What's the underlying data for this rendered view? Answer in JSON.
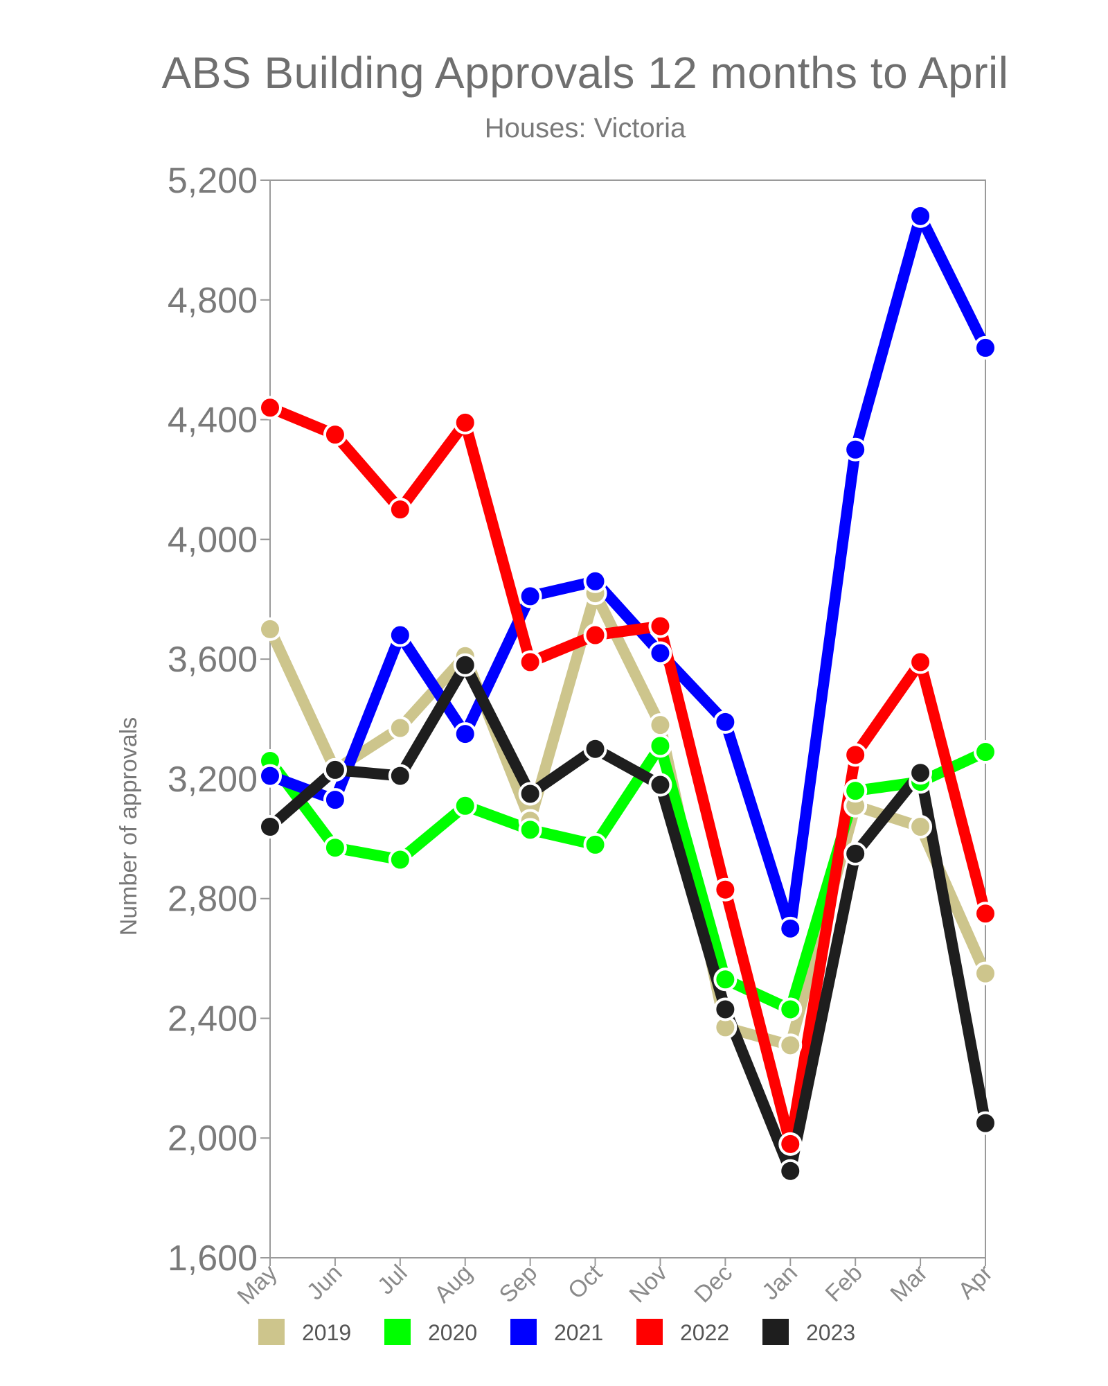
{
  "title": "ABS Building Approvals 12 months to April",
  "subtitle": "Houses: Victoria",
  "chart_data": {
    "type": "line",
    "title": "ABS Building Approvals 12 months to April",
    "subtitle": "Houses: Victoria",
    "xlabel": "",
    "ylabel": "Number of approvals",
    "ylim": [
      1600,
      5200
    ],
    "yticks": [
      1600,
      2000,
      2400,
      2800,
      3200,
      3600,
      4000,
      4400,
      4800,
      5200
    ],
    "ytick_labels": [
      "1,600",
      "2,000",
      "2,400",
      "2,800",
      "3,200",
      "3,600",
      "4,000",
      "4,400",
      "4,800",
      "5,200"
    ],
    "categories": [
      "May",
      "Jun",
      "Jul",
      "Aug",
      "Sep",
      "Oct",
      "Nov",
      "Dec",
      "Jan",
      "Feb",
      "Mar",
      "Apr"
    ],
    "grid": false,
    "legend_position": "bottom",
    "series": [
      {
        "name": "2019",
        "color": "#cdc58c",
        "values": [
          3700,
          3230,
          3370,
          3610,
          3060,
          3820,
          3380,
          2370,
          2310,
          3110,
          3040,
          2550
        ]
      },
      {
        "name": "2020",
        "color": "#00ff00",
        "values": [
          3260,
          2970,
          2930,
          3110,
          3030,
          2980,
          3310,
          2530,
          2430,
          3160,
          3190,
          3290
        ]
      },
      {
        "name": "2021",
        "color": "#0000ff",
        "values": [
          3210,
          3130,
          3680,
          3350,
          3810,
          3860,
          3620,
          3390,
          2700,
          4300,
          5080,
          4640
        ]
      },
      {
        "name": "2022",
        "color": "#ff0000",
        "values": [
          4440,
          4350,
          4100,
          4390,
          3590,
          3680,
          3710,
          2830,
          1980,
          3280,
          3590,
          2750
        ]
      },
      {
        "name": "2023",
        "color": "#1e1e1e",
        "values": [
          3040,
          3230,
          3210,
          3580,
          3150,
          3300,
          3180,
          2430,
          1890,
          2950,
          3220,
          2050
        ]
      }
    ]
  }
}
